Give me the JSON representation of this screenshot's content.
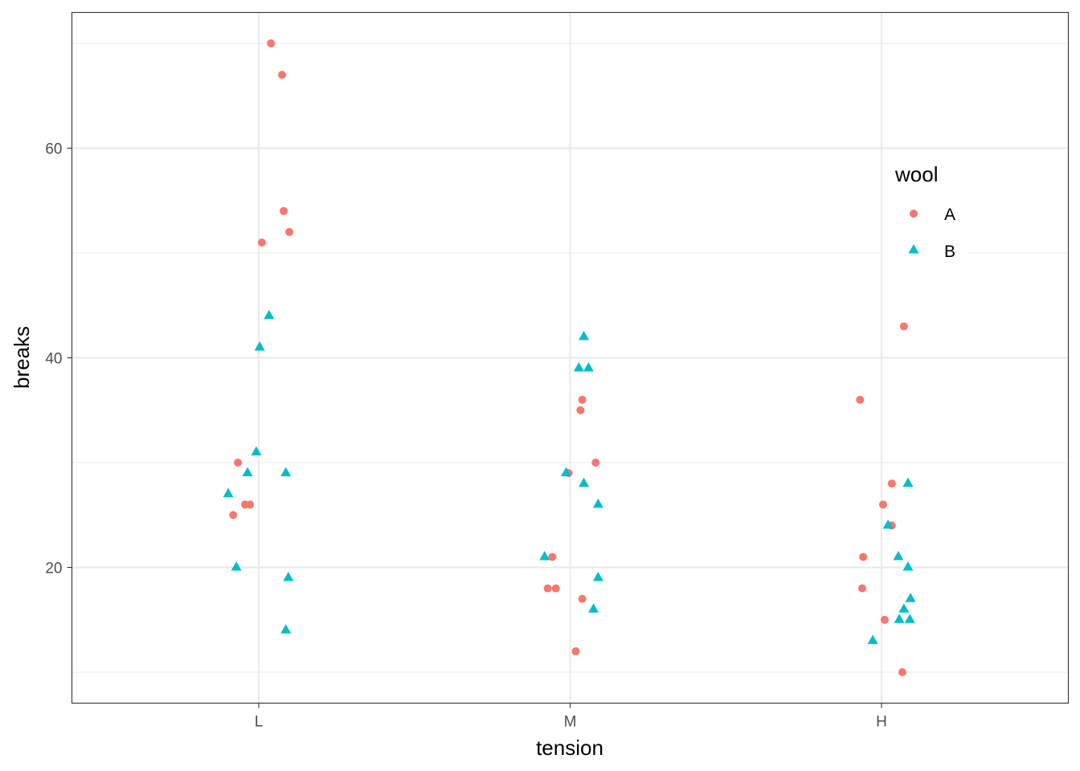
{
  "chart_data": {
    "type": "scatter",
    "title": "",
    "xlabel": "tension",
    "ylabel": "breaks",
    "categories": [
      "L",
      "M",
      "H"
    ],
    "xlim": [
      0.4,
      3.6
    ],
    "ylim": [
      7.05,
      72.95
    ],
    "yticks": [
      20,
      40,
      60
    ],
    "ytick_labels": [
      "20",
      "40",
      "60"
    ],
    "minor_y": [
      10,
      30,
      50,
      70
    ],
    "grid": true,
    "legend": {
      "title": "wool",
      "placement": "right-inside",
      "entries": [
        "A",
        "B"
      ]
    },
    "series": [
      {
        "name": "A",
        "shape": "circle",
        "color": "#F8766D",
        "points": [
          {
            "cat": 1,
            "jitter": -0.044,
            "y": 26
          },
          {
            "cat": 1,
            "jitter": -0.067,
            "y": 30
          },
          {
            "cat": 1,
            "jitter": 0.08,
            "y": 54
          },
          {
            "cat": 1,
            "jitter": -0.082,
            "y": 25
          },
          {
            "cat": 1,
            "jitter": 0.039,
            "y": 70
          },
          {
            "cat": 1,
            "jitter": 0.098,
            "y": 52
          },
          {
            "cat": 1,
            "jitter": 0.01,
            "y": 51
          },
          {
            "cat": 1,
            "jitter": -0.028,
            "y": 26
          },
          {
            "cat": 1,
            "jitter": 0.075,
            "y": 67
          },
          {
            "cat": 2,
            "jitter": -0.072,
            "y": 18
          },
          {
            "cat": 2,
            "jitter": -0.057,
            "y": 21
          },
          {
            "cat": 2,
            "jitter": -0.005,
            "y": 29
          },
          {
            "cat": 2,
            "jitter": 0.039,
            "y": 17
          },
          {
            "cat": 2,
            "jitter": 0.018,
            "y": 12
          },
          {
            "cat": 2,
            "jitter": -0.046,
            "y": 18
          },
          {
            "cat": 2,
            "jitter": 0.033,
            "y": 35
          },
          {
            "cat": 2,
            "jitter": 0.082,
            "y": 30
          },
          {
            "cat": 2,
            "jitter": 0.039,
            "y": 36
          },
          {
            "cat": 3,
            "jitter": -0.069,
            "y": 36
          },
          {
            "cat": 3,
            "jitter": -0.059,
            "y": 21
          },
          {
            "cat": 3,
            "jitter": 0.033,
            "y": 24
          },
          {
            "cat": 3,
            "jitter": -0.062,
            "y": 18
          },
          {
            "cat": 3,
            "jitter": 0.067,
            "y": 10
          },
          {
            "cat": 3,
            "jitter": 0.072,
            "y": 43
          },
          {
            "cat": 3,
            "jitter": 0.033,
            "y": 28
          },
          {
            "cat": 3,
            "jitter": 0.01,
            "y": 15
          },
          {
            "cat": 3,
            "jitter": 0.005,
            "y": 26
          }
        ]
      },
      {
        "name": "B",
        "shape": "triangle",
        "color": "#00BFC4",
        "points": [
          {
            "cat": 1,
            "jitter": -0.098,
            "y": 27
          },
          {
            "cat": 1,
            "jitter": 0.087,
            "y": 14
          },
          {
            "cat": 1,
            "jitter": -0.036,
            "y": 29
          },
          {
            "cat": 1,
            "jitter": 0.095,
            "y": 19
          },
          {
            "cat": 1,
            "jitter": 0.087,
            "y": 29
          },
          {
            "cat": 1,
            "jitter": -0.008,
            "y": 31
          },
          {
            "cat": 1,
            "jitter": 0.003,
            "y": 41
          },
          {
            "cat": 1,
            "jitter": -0.072,
            "y": 20
          },
          {
            "cat": 1,
            "jitter": 0.033,
            "y": 44
          },
          {
            "cat": 2,
            "jitter": 0.044,
            "y": 42
          },
          {
            "cat": 2,
            "jitter": 0.09,
            "y": 26
          },
          {
            "cat": 2,
            "jitter": 0.09,
            "y": 19
          },
          {
            "cat": 2,
            "jitter": 0.075,
            "y": 16
          },
          {
            "cat": 2,
            "jitter": 0.028,
            "y": 39
          },
          {
            "cat": 2,
            "jitter": 0.044,
            "y": 28
          },
          {
            "cat": 2,
            "jitter": -0.082,
            "y": 21
          },
          {
            "cat": 2,
            "jitter": 0.059,
            "y": 39
          },
          {
            "cat": 2,
            "jitter": -0.013,
            "y": 29
          },
          {
            "cat": 3,
            "jitter": 0.085,
            "y": 20
          },
          {
            "cat": 3,
            "jitter": 0.054,
            "y": 21
          },
          {
            "cat": 3,
            "jitter": 0.021,
            "y": 24
          },
          {
            "cat": 3,
            "jitter": 0.093,
            "y": 17
          },
          {
            "cat": 3,
            "jitter": -0.028,
            "y": 13
          },
          {
            "cat": 3,
            "jitter": 0.057,
            "y": 15
          },
          {
            "cat": 3,
            "jitter": 0.091,
            "y": 15
          },
          {
            "cat": 3,
            "jitter": 0.072,
            "y": 16
          },
          {
            "cat": 3,
            "jitter": 0.085,
            "y": 28
          }
        ]
      }
    ]
  }
}
